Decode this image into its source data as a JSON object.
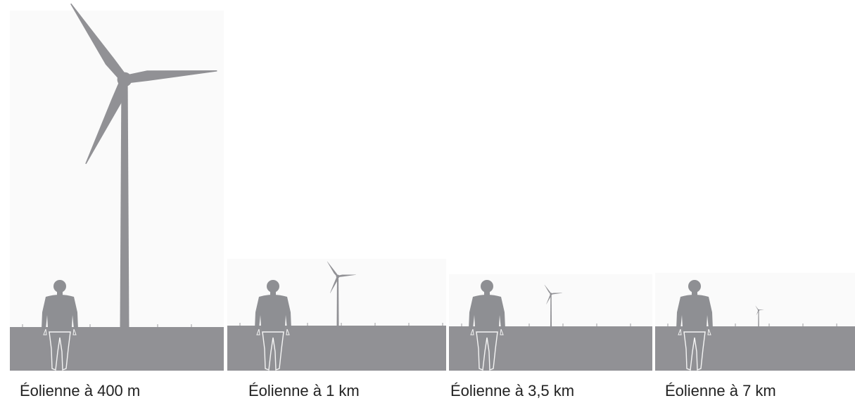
{
  "panels": [
    {
      "caption": "Éolienne à 400 m"
    },
    {
      "caption": "Éolienne à 1 km"
    },
    {
      "caption": "Éolienne à 3,5 km"
    },
    {
      "caption": "Éolienne à 7 km"
    }
  ]
}
